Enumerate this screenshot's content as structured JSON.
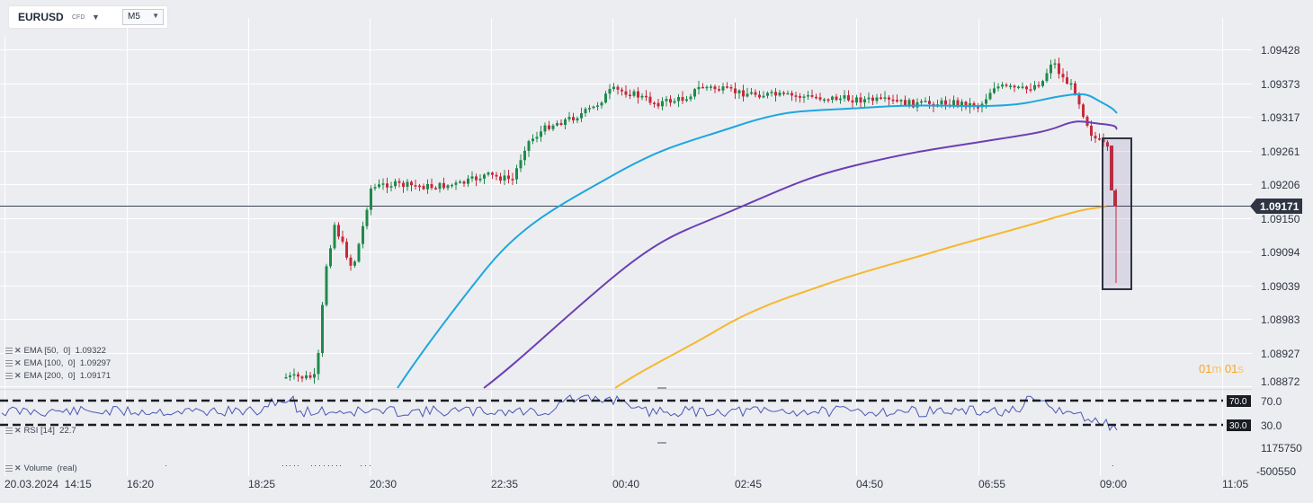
{
  "header": {
    "symbol": "EURUSD",
    "symbol_type": "CFD",
    "timeframe": "M5"
  },
  "price_axis": {
    "ticks": [
      "1.09428",
      "1.09373",
      "1.09317",
      "1.09261",
      "1.09206",
      "1.09150",
      "1.09094",
      "1.09039",
      "1.08983",
      "1.08927",
      "1.08872"
    ],
    "current_price_label": "1.09171"
  },
  "time_axis": {
    "ticks": [
      "20.03.2024  14:15",
      "16:20",
      "18:25",
      "20:30",
      "22:35",
      "00:40",
      "02:45",
      "04:50",
      "06:55",
      "09:00",
      "11:05"
    ]
  },
  "indicators": [
    {
      "label": "EMA [50,  0]  1.09322",
      "color": "#1ca7e0"
    },
    {
      "label": "EMA [100,  0]  1.09297",
      "color": "#6b3fb5"
    },
    {
      "label": "EMA [200,  0]  1.09171",
      "color": "#f5b82e"
    }
  ],
  "timer": {
    "minutes": "01",
    "m_unit": "m",
    "seconds": "01",
    "s_unit": "s"
  },
  "rsi_panel": {
    "label": "RSI [14]  22.7",
    "axis_ticks": [
      "70.0",
      "30.0"
    ],
    "level_badges": [
      "70.0",
      "30.0"
    ]
  },
  "volume_panel": {
    "label": "Volume  (real)",
    "axis_ticks": [
      "1175750",
      "-500550"
    ]
  },
  "colors": {
    "background": "#ecedf0",
    "grid": "#ffffff",
    "bull": "#1e8a4c",
    "bear": "#c8293a",
    "ema50": "#1ca7e0",
    "ema100": "#6b3fb5",
    "ema200": "#f5b82e",
    "rsi": "#4a57b8"
  },
  "chart_data": {
    "type": "line",
    "instrument": "EURUSD",
    "timeframe": "M5",
    "ylim": [
      1.08872,
      1.09428
    ],
    "x_categories": [
      "14:15",
      "16:20",
      "18:25",
      "20:30",
      "22:35",
      "00:40",
      "02:45",
      "04:50",
      "06:55",
      "09:00",
      "11:05"
    ],
    "series": [
      {
        "name": "EMA [50,  0]  1.09322",
        "color": "#1ca7e0",
        "x": [
          "20:30",
          "22:35",
          "00:40",
          "02:45",
          "04:50",
          "06:55",
          "08:00",
          "08:30"
        ],
        "values": [
          1.08865,
          1.0908,
          1.0925,
          1.09315,
          1.0933,
          1.0934,
          1.09355,
          1.09322
        ]
      },
      {
        "name": "EMA [100,  0]  1.09297",
        "color": "#6b3fb5",
        "x": [
          "22:20",
          "00:40",
          "02:45",
          "04:50",
          "06:55",
          "08:00",
          "08:30"
        ],
        "values": [
          1.08865,
          1.0908,
          1.0918,
          1.0925,
          1.09275,
          1.09305,
          1.09297
        ]
      },
      {
        "name": "EMA [200,  0]  1.09171",
        "color": "#f5b82e",
        "x": [
          "00:40",
          "02:45",
          "04:50",
          "06:55",
          "08:00",
          "08:55"
        ],
        "values": [
          1.0887,
          1.0899,
          1.0908,
          1.0913,
          1.0916,
          1.09171
        ]
      }
    ],
    "last_price": 1.09171,
    "rsi": {
      "period": 14,
      "last": 22.7,
      "levels": [
        70,
        30
      ]
    }
  }
}
